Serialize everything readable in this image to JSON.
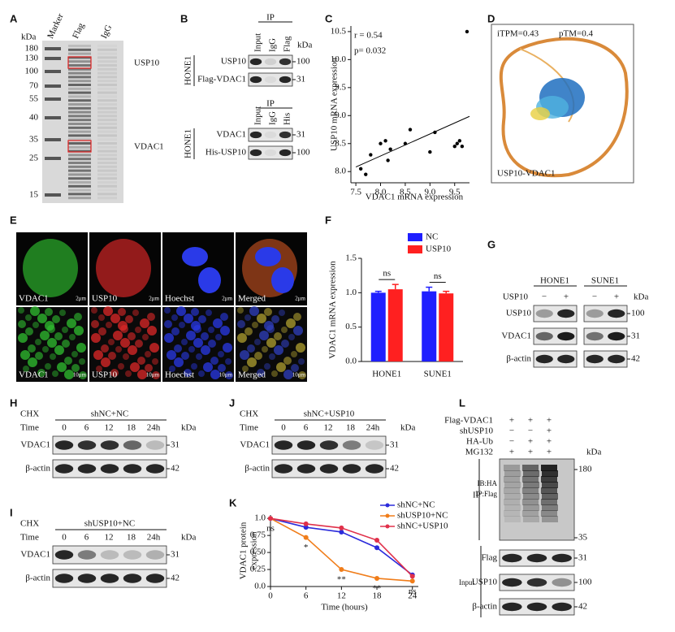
{
  "A": {
    "label": "A",
    "unit": "kDa",
    "lanes": [
      "Marker",
      "Flag",
      "IgG"
    ],
    "markers": [
      180,
      130,
      100,
      70,
      55,
      40,
      35,
      25,
      15
    ],
    "bands": [
      "USP10",
      "VDAC1"
    ]
  },
  "B": {
    "label": "B",
    "cell": "HONE1",
    "unit": "kDa",
    "blots": [
      {
        "ip": "IP",
        "lanes": [
          "Input",
          "IgG",
          "Flag"
        ],
        "rows": [
          {
            "name": "USP10",
            "kda": 100
          },
          {
            "name": "Flag-VDAC1",
            "kda": 31
          }
        ]
      },
      {
        "ip": "IP",
        "lanes": [
          "Input",
          "IgG",
          "His"
        ],
        "rows": [
          {
            "name": "VDAC1",
            "kda": 31
          },
          {
            "name": "His-USP10",
            "kda": 100
          }
        ]
      }
    ]
  },
  "C": {
    "label": "C",
    "type": "scatter",
    "annotations": [
      "r = 0.54",
      "p= 0.032"
    ],
    "xlabel": "VDAC1 mRNA expression",
    "ylabel": "USP10 mRNA expression",
    "color": "#000000",
    "x": [
      7.6,
      7.7,
      7.8,
      8.0,
      8.1,
      8.15,
      8.2,
      8.5,
      8.6,
      9.0,
      9.1,
      9.5,
      9.55,
      9.6,
      9.65,
      9.75
    ],
    "y": [
      8.05,
      7.95,
      8.3,
      8.5,
      8.55,
      8.2,
      8.4,
      8.5,
      8.75,
      8.35,
      8.7,
      8.45,
      8.5,
      8.55,
      8.45,
      10.5
    ],
    "xlim": [
      7.4,
      9.8
    ],
    "ylim": [
      7.8,
      10.6
    ],
    "xticks": [
      7.5,
      {
        "value": 8,
        "label": "8.0"
      },
      8.5,
      {
        "value": 9,
        "label": "9.0"
      },
      9.5
    ],
    "yticks": [
      {
        "value": 8,
        "label": "8.0"
      },
      8.5,
      {
        "value": 9,
        "label": "9.0"
      },
      9.5,
      {
        "value": 10,
        "label": "10.0"
      },
      10.5
    ]
  },
  "D": {
    "label": "D",
    "scores": [
      "iTPM=0.43",
      "pTM=0.4"
    ],
    "caption": "USP10-VDAC1"
  },
  "E": {
    "label": "E",
    "channels": [
      "VDAC1",
      "USP10",
      "Hoechst",
      "Merged"
    ],
    "scales": [
      "2μm",
      "10μm"
    ]
  },
  "F": {
    "label": "F",
    "type": "bar",
    "ylabel": "VDAC1 mRNA expression",
    "categories": [
      "HONE1",
      "SUNE1"
    ],
    "series": [
      {
        "name": "NC",
        "color": "#1f1fff",
        "values": [
          1.0,
          1.02
        ],
        "errors": [
          0.02,
          0.06
        ]
      },
      {
        "name": "USP10",
        "color": "#ff2020",
        "values": [
          1.05,
          0.99
        ],
        "errors": [
          0.07,
          0.03
        ]
      }
    ],
    "annotations": [
      "ns",
      "ns"
    ],
    "ylim": [
      0,
      1.5
    ],
    "yticks": [
      {
        "value": 0,
        "label": "0.0"
      },
      0.5,
      {
        "value": 1,
        "label": "1.0"
      },
      1.5
    ]
  },
  "G": {
    "label": "G",
    "cells": [
      "HONE1",
      "SUNE1"
    ],
    "treatment": "USP10",
    "signs": [
      "−",
      "+"
    ],
    "unit": "kDa",
    "rows": [
      {
        "name": "USP10",
        "kda": 100
      },
      {
        "name": "VDAC1",
        "kda": 31
      },
      {
        "name": "β-actin",
        "kda": 42
      }
    ]
  },
  "H": {
    "label": "H",
    "treatment": "CHX",
    "condition": "shNC+NC",
    "time_label": "Time",
    "times": [
      "0",
      "6",
      "12",
      "18",
      "24h"
    ],
    "unit": "kDa",
    "rows": [
      {
        "name": "VDAC1",
        "kda": 31
      },
      {
        "name": "β-actin",
        "kda": 42
      }
    ]
  },
  "J": {
    "label": "J",
    "treatment": "CHX",
    "condition": "shNC+USP10",
    "time_label": "Time",
    "times": [
      "0",
      "6",
      "12",
      "18",
      "24h"
    ],
    "unit": "kDa",
    "rows": [
      {
        "name": "VDAC1",
        "kda": 31
      },
      {
        "name": "β-actin",
        "kda": 42
      }
    ]
  },
  "I": {
    "label": "I",
    "treatment": "CHX",
    "condition": "shUSP10+NC",
    "time_label": "Time",
    "times": [
      "0",
      "6",
      "12",
      "18",
      "24h"
    ],
    "unit": "kDa",
    "rows": [
      {
        "name": "VDAC1",
        "kda": 31
      },
      {
        "name": "β-actin",
        "kda": 42
      }
    ]
  },
  "K": {
    "label": "K",
    "type": "line",
    "xlabel": "Time (hours)",
    "ylabel": [
      "VDAC1 protein",
      "expression"
    ],
    "x": [
      0,
      6,
      12,
      18,
      24
    ],
    "series": [
      {
        "name": "shNC+NC",
        "color": "#2b2bdb",
        "values": [
          1.0,
          0.87,
          0.8,
          0.57,
          0.17
        ]
      },
      {
        "name": "shUSP10+NC",
        "color": "#f07d1a",
        "values": [
          1.0,
          0.72,
          0.25,
          0.12,
          0.08
        ]
      },
      {
        "name": "shNC+USP10",
        "color": "#e0304a",
        "values": [
          1.0,
          0.92,
          0.86,
          0.68,
          0.15
        ]
      }
    ],
    "annotations": [
      {
        "x": 0,
        "text": "ns"
      },
      {
        "x": 6,
        "text": "*"
      },
      {
        "x": 12,
        "text": "**"
      },
      {
        "x": 18,
        "text": "**"
      },
      {
        "x": 24,
        "text": "ns"
      }
    ],
    "xlim": [
      0,
      25
    ],
    "ylim": [
      0,
      1.05
    ],
    "xticks": [
      0,
      6,
      12,
      18,
      24
    ],
    "yticks": [
      {
        "value": 0,
        "label": "0.0"
      },
      0.25,
      {
        "value": 0.5,
        "label": "0.50"
      },
      0.75,
      {
        "value": 1,
        "label": "1.0"
      }
    ]
  },
  "L": {
    "label": "L",
    "unit": "kDa",
    "conditions": [
      {
        "name": "Flag-VDAC1",
        "signs": [
          "+",
          "+",
          "+"
        ]
      },
      {
        "name": "shUSP10",
        "signs": [
          "−",
          "−",
          "+"
        ]
      },
      {
        "name": "HA-Ub",
        "signs": [
          "−",
          "+",
          "+"
        ]
      },
      {
        "name": "MG132",
        "signs": [
          "+",
          "+",
          "+"
        ]
      }
    ],
    "ip": {
      "section": "IP",
      "antibodies": [
        "IB:HA",
        "IP:Flag"
      ],
      "markers": [
        180,
        35
      ]
    },
    "input": {
      "section": "Input",
      "rows": [
        {
          "name": "Flag",
          "kda": 31
        },
        {
          "name": "USP10",
          "kda": 100
        },
        {
          "name": "β-actin",
          "kda": 42
        }
      ]
    }
  }
}
